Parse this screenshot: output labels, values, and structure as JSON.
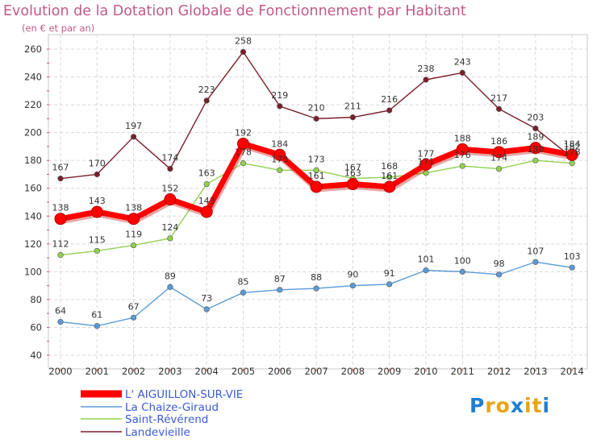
{
  "chart_data": {
    "type": "line",
    "title": "Evolution de la Dotation Globale de Fonctionnement par Habitant",
    "subtitle": "(en € et par an)",
    "xlabel": "",
    "ylabel": "",
    "x": [
      "2000",
      "2001",
      "2002",
      "2003",
      "2004",
      "2005",
      "2006",
      "2007",
      "2008",
      "2009",
      "2010",
      "2011",
      "2012",
      "2013",
      "2014"
    ],
    "ylim": [
      40,
      260
    ],
    "yticks": [
      "40",
      "60",
      "80",
      "100",
      "120",
      "140",
      "160",
      "180",
      "200",
      "220",
      "240",
      "260"
    ],
    "grid": true,
    "legend": "bottom-left",
    "series": [
      {
        "name": "L' AIGUILLON-SUR-VIE",
        "color": "#ff0000",
        "values": [
          138,
          143,
          138,
          152,
          143,
          192,
          184,
          161,
          163,
          161,
          177,
          188,
          186,
          189,
          184
        ],
        "labels": [
          "138",
          "143",
          "138",
          "152",
          "143",
          "192",
          "184",
          "161",
          "163",
          "161",
          "177",
          "188",
          "186",
          "189",
          "184"
        ]
      },
      {
        "name": "La Chaize-Giraud",
        "color": "#5b9bd5",
        "values": [
          64,
          61,
          67,
          89,
          73,
          85,
          87,
          88,
          90,
          91,
          101,
          100,
          98,
          107,
          103
        ],
        "labels": [
          "64",
          "61",
          "67",
          "89",
          "73",
          "85",
          "87",
          "88",
          "90",
          "91",
          "101",
          "100",
          "98",
          "107",
          "103"
        ]
      },
      {
        "name": "Saint-Révérend",
        "color": "#92d050",
        "values": [
          112,
          115,
          119,
          124,
          163,
          178,
          173,
          173,
          167,
          168,
          171,
          176,
          174,
          180,
          178
        ],
        "labels": [
          "112",
          "115",
          "119",
          "124",
          "163",
          "178",
          "173",
          "173",
          "167",
          "168",
          "171",
          "176",
          "174",
          "180",
          "178"
        ]
      },
      {
        "name": "Landevieille",
        "color": "#7a1f2a",
        "values": [
          167,
          170,
          197,
          174,
          223,
          258,
          219,
          210,
          211,
          216,
          238,
          243,
          217,
          203,
          182
        ],
        "labels": [
          "167",
          "170",
          "197",
          "174",
          "223",
          "258",
          "219",
          "210",
          "211",
          "216",
          "238",
          "243",
          "217",
          "203",
          "182"
        ]
      }
    ]
  },
  "logo": {
    "letters": [
      "P",
      "r",
      "o",
      "x",
      "i",
      "t",
      "i"
    ],
    "colors": [
      "#1f7fd0",
      "#e8a317",
      "#e8a317",
      "#1f7fd0",
      "#e8a317",
      "#e8a317",
      "#1f7fd0"
    ]
  }
}
